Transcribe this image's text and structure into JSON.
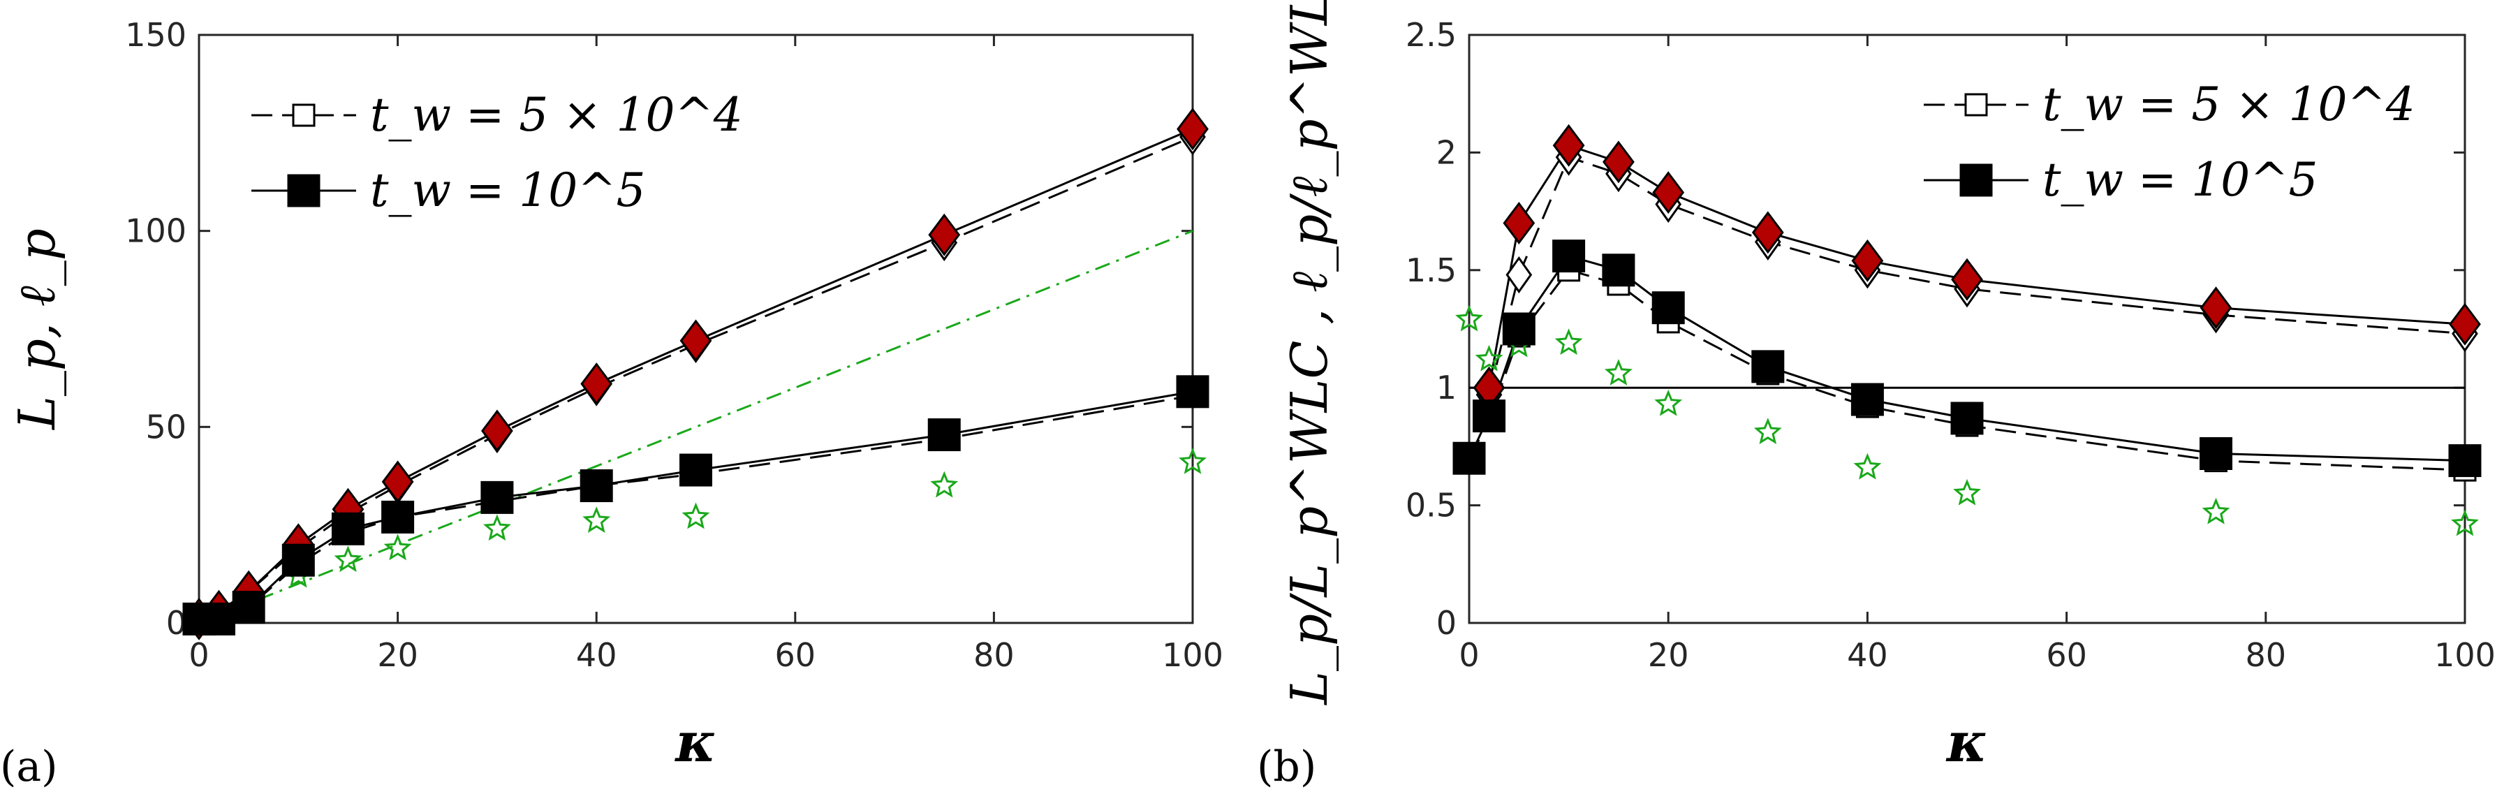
{
  "chart_data": [
    {
      "panel": "(a)",
      "type": "line",
      "xlabel": "κ",
      "ylabel": "L_p, ℓ_p",
      "xlim": [
        0,
        100
      ],
      "ylim": [
        0,
        150
      ],
      "xticks": [
        0,
        20,
        40,
        60,
        80,
        100
      ],
      "yticks": [
        0,
        50,
        100,
        150
      ],
      "legend_position": "top-left",
      "legend": [
        {
          "label": "t_w = 5 × 10^4",
          "style": "dashed, open square"
        },
        {
          "label": "t_w = 10^5",
          "style": "solid, filled square"
        }
      ],
      "reference_line": {
        "style": "dash-dot",
        "color": "#1aa81a",
        "x": [
          0,
          100
        ],
        "y": [
          0,
          100
        ]
      },
      "series": [
        {
          "marker": "diamond",
          "fill": "#b30000",
          "line": "solid",
          "x": [
            0,
            2,
            5,
            10,
            15,
            20,
            30,
            40,
            50,
            75,
            100
          ],
          "y": [
            1,
            3,
            8,
            20,
            29,
            36,
            49,
            61,
            72,
            99,
            126
          ]
        },
        {
          "marker": "diamond",
          "fill": "#ffffff",
          "line": "dashed",
          "x": [
            0,
            2,
            5,
            10,
            15,
            20,
            30,
            40,
            50,
            75,
            100
          ],
          "y": [
            1,
            3,
            8,
            19,
            28,
            35,
            48,
            60,
            71,
            97,
            124
          ]
        },
        {
          "marker": "square",
          "fill": "#000000",
          "line": "solid",
          "x": [
            0,
            2,
            5,
            10,
            15,
            20,
            30,
            40,
            50,
            75,
            100
          ],
          "y": [
            1,
            1,
            4,
            16,
            24,
            27,
            32,
            35,
            39,
            48,
            59
          ]
        },
        {
          "marker": "square",
          "fill": "#ffffff",
          "line": "dashed",
          "x": [
            0,
            2,
            5,
            10,
            15,
            20,
            30,
            40,
            50,
            75,
            100
          ],
          "y": [
            1,
            1,
            4,
            15,
            23,
            27,
            31,
            35,
            38,
            47,
            58
          ]
        },
        {
          "marker": "star",
          "fill": "none",
          "stroke": "#1aa81a",
          "line": "none",
          "x": [
            0,
            2,
            5,
            10,
            15,
            20,
            30,
            40,
            50,
            75,
            100
          ],
          "y": [
            1,
            2,
            6,
            12,
            16,
            19,
            24,
            26,
            27,
            35,
            41
          ]
        }
      ]
    },
    {
      "panel": "(b)",
      "type": "line",
      "xlabel": "κ",
      "ylabel": "L_p/L_p^WLC , ℓ_p/ℓ_p^WLC",
      "xlim": [
        0,
        100
      ],
      "ylim": [
        0,
        2.5
      ],
      "xticks": [
        0,
        20,
        40,
        60,
        80,
        100
      ],
      "yticks": [
        0,
        0.5,
        1,
        1.5,
        2,
        2.5
      ],
      "legend_position": "top-right",
      "legend": [
        {
          "label": "t_w = 5 × 10^4",
          "style": "dashed, open square"
        },
        {
          "label": "t_w = 10^5",
          "style": "solid, filled square"
        }
      ],
      "reference_line": {
        "style": "solid",
        "color": "#000000",
        "x": [
          0,
          100
        ],
        "y": [
          1,
          1
        ]
      },
      "series": [
        {
          "marker": "diamond",
          "fill": "#b30000",
          "line": "solid",
          "x": [
            2,
            5,
            10,
            15,
            20,
            30,
            40,
            50,
            75,
            100
          ],
          "y": [
            1.0,
            1.7,
            2.03,
            1.96,
            1.83,
            1.66,
            1.54,
            1.46,
            1.34,
            1.27
          ]
        },
        {
          "marker": "diamond",
          "fill": "#ffffff",
          "line": "dashed",
          "x": [
            2,
            5,
            10,
            15,
            20,
            30,
            40,
            50,
            75,
            100
          ],
          "y": [
            0.97,
            1.48,
            1.98,
            1.91,
            1.78,
            1.62,
            1.5,
            1.42,
            1.31,
            1.23
          ]
        },
        {
          "marker": "square",
          "fill": "#000000",
          "line": "solid",
          "x": [
            0,
            2,
            5,
            10,
            15,
            20,
            30,
            40,
            50,
            75,
            100
          ],
          "y": [
            0.7,
            0.88,
            1.25,
            1.56,
            1.5,
            1.34,
            1.09,
            0.95,
            0.87,
            0.72,
            0.69
          ]
        },
        {
          "marker": "square",
          "fill": "#ffffff",
          "line": "dashed",
          "x": [
            0,
            2,
            5,
            10,
            15,
            20,
            30,
            40,
            50,
            75,
            100
          ],
          "y": [
            0.7,
            0.86,
            1.22,
            1.5,
            1.44,
            1.28,
            1.06,
            0.92,
            0.84,
            0.69,
            0.65
          ]
        },
        {
          "marker": "star",
          "fill": "none",
          "stroke": "#1aa81a",
          "line": "none",
          "x": [
            0,
            2,
            5,
            10,
            15,
            20,
            30,
            40,
            50,
            75,
            100
          ],
          "y": [
            1.29,
            1.12,
            1.18,
            1.19,
            1.06,
            0.93,
            0.81,
            0.66,
            0.55,
            0.47,
            0.42
          ]
        }
      ]
    }
  ]
}
